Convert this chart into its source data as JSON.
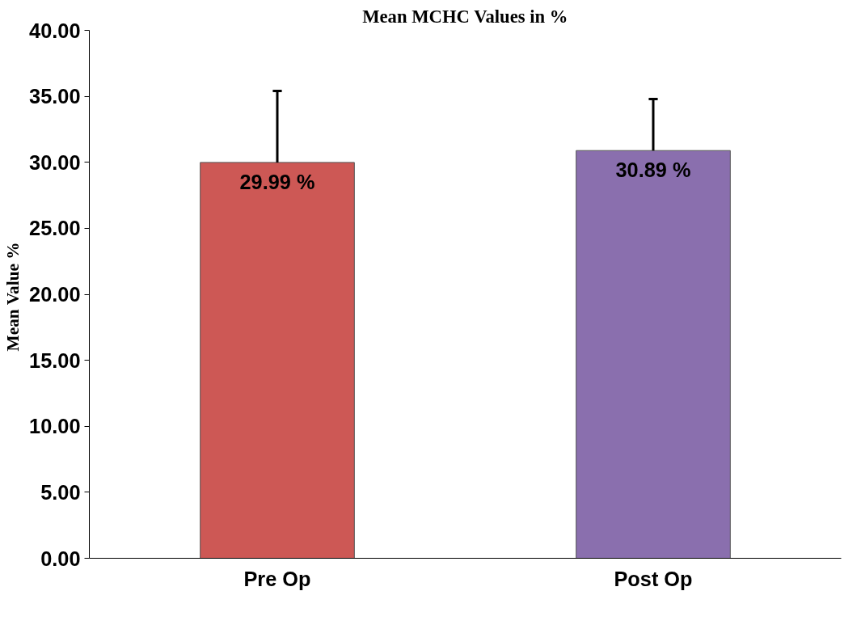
{
  "chart_data": {
    "type": "bar",
    "title": "Mean MCHC Values in %",
    "ylabel": "Mean Value  %",
    "categories": [
      "Pre Op",
      "Post Op"
    ],
    "values": [
      29.99,
      30.89
    ],
    "colors": [
      "#cd5855",
      "#8a6fae"
    ],
    "value_labels": [
      "29.99 %",
      "30.89 %"
    ],
    "errors": [
      [
        29.99,
        35.4
      ],
      [
        30.89,
        34.8
      ]
    ],
    "ylim": [
      0,
      40
    ],
    "yticks": [
      {
        "value": 0,
        "label": "0.00"
      },
      {
        "value": 5,
        "label": "5.00"
      },
      {
        "value": 10,
        "label": "10.00"
      },
      {
        "value": 15,
        "label": "15.00"
      },
      {
        "value": 20,
        "label": "20.00"
      },
      {
        "value": 25,
        "label": "25.00"
      },
      {
        "value": 30,
        "label": "30.00"
      },
      {
        "value": 35,
        "label": "35.00"
      },
      {
        "value": 40,
        "label": "40.00"
      }
    ],
    "grid": false
  }
}
